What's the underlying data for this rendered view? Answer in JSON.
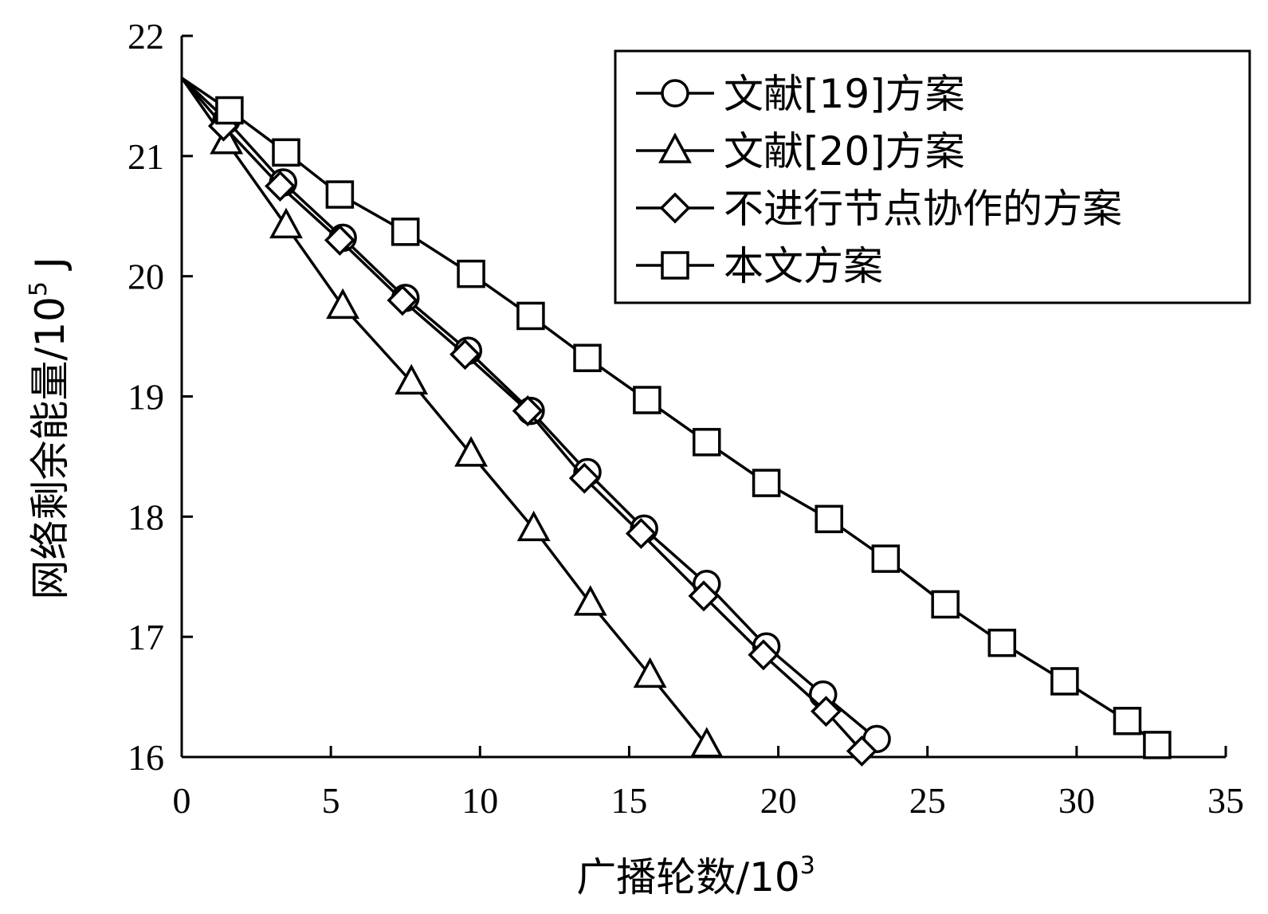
{
  "chart_data": {
    "type": "line",
    "xlabel": "广播轮数/10",
    "xlabel_sup": "3",
    "ylabel": "网络剩余能量/10",
    "ylabel_sup": "5",
    "ylabel_unit": " J",
    "xlim": [
      0,
      35
    ],
    "ylim": [
      16,
      22
    ],
    "x_ticks": [
      0,
      5,
      10,
      15,
      20,
      25,
      30,
      35
    ],
    "y_ticks": [
      16,
      17,
      18,
      19,
      20,
      21,
      22
    ],
    "grid": false,
    "legend_position": "top-right",
    "start_point": {
      "x": 0,
      "y": 21.65
    },
    "series": [
      {
        "name": "文献[19]方案",
        "marker": "circle",
        "x": [
          1.5,
          3.4,
          5.4,
          7.5,
          9.6,
          11.7,
          13.6,
          15.5,
          17.6,
          19.6,
          21.5,
          23.3
        ],
        "y": [
          21.3,
          20.78,
          20.32,
          19.82,
          19.38,
          18.88,
          18.37,
          17.9,
          17.44,
          16.92,
          16.52,
          16.15
        ]
      },
      {
        "name": "文献[20]方案",
        "marker": "triangle",
        "x": [
          1.5,
          3.5,
          5.4,
          7.7,
          9.7,
          11.8,
          13.7,
          15.7,
          17.6
        ],
        "y": [
          21.12,
          20.42,
          19.75,
          19.12,
          18.52,
          17.9,
          17.28,
          16.68,
          16.1
        ]
      },
      {
        "name": "不进行节点协作的方案",
        "marker": "diamond",
        "x": [
          1.4,
          3.3,
          5.3,
          7.4,
          9.5,
          11.6,
          13.5,
          15.4,
          17.5,
          19.5,
          21.6,
          22.8
        ],
        "y": [
          21.25,
          20.75,
          20.3,
          19.8,
          19.35,
          18.88,
          18.32,
          17.86,
          17.34,
          16.85,
          16.38,
          16.05
        ]
      },
      {
        "name": "本文方案",
        "marker": "square",
        "x": [
          1.6,
          3.5,
          5.3,
          7.5,
          9.7,
          11.7,
          13.6,
          15.6,
          17.6,
          19.6,
          21.7,
          23.6,
          25.6,
          27.5,
          29.6,
          31.7,
          32.7
        ],
        "y": [
          21.38,
          21.03,
          20.68,
          20.37,
          20.02,
          19.67,
          19.32,
          18.97,
          18.62,
          18.28,
          17.98,
          17.65,
          17.27,
          16.95,
          16.63,
          16.3,
          16.1
        ]
      }
    ]
  }
}
